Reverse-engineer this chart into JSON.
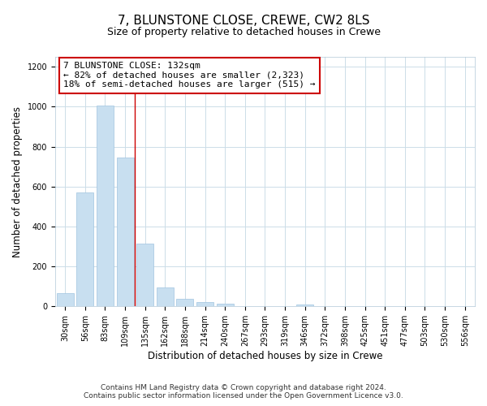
{
  "title": "7, BLUNSTONE CLOSE, CREWE, CW2 8LS",
  "subtitle": "Size of property relative to detached houses in Crewe",
  "xlabel": "Distribution of detached houses by size in Crewe",
  "ylabel": "Number of detached properties",
  "bar_labels": [
    "30sqm",
    "56sqm",
    "83sqm",
    "109sqm",
    "135sqm",
    "162sqm",
    "188sqm",
    "214sqm",
    "240sqm",
    "267sqm",
    "293sqm",
    "319sqm",
    "346sqm",
    "372sqm",
    "398sqm",
    "425sqm",
    "451sqm",
    "477sqm",
    "503sqm",
    "530sqm",
    "556sqm"
  ],
  "bar_values": [
    65,
    570,
    1005,
    745,
    315,
    95,
    38,
    20,
    15,
    0,
    0,
    0,
    10,
    0,
    0,
    0,
    0,
    0,
    0,
    0,
    0
  ],
  "bar_color": "#c8dff0",
  "bar_edge_color": "#a0c4e0",
  "property_line_color": "#cc0000",
  "annotation_box_text": "7 BLUNSTONE CLOSE: 132sqm\n← 82% of detached houses are smaller (2,323)\n18% of semi-detached houses are larger (515) →",
  "annotation_box_color": "#ffffff",
  "annotation_box_edge_color": "#cc0000",
  "ylim": [
    0,
    1250
  ],
  "yticks": [
    0,
    200,
    400,
    600,
    800,
    1000,
    1200
  ],
  "footer_text": "Contains HM Land Registry data © Crown copyright and database right 2024.\nContains public sector information licensed under the Open Government Licence v3.0.",
  "background_color": "#ffffff",
  "grid_color": "#ccdde8",
  "title_fontsize": 11,
  "subtitle_fontsize": 9,
  "axis_label_fontsize": 8.5,
  "tick_fontsize": 7,
  "annotation_fontsize": 8,
  "footer_fontsize": 6.5
}
